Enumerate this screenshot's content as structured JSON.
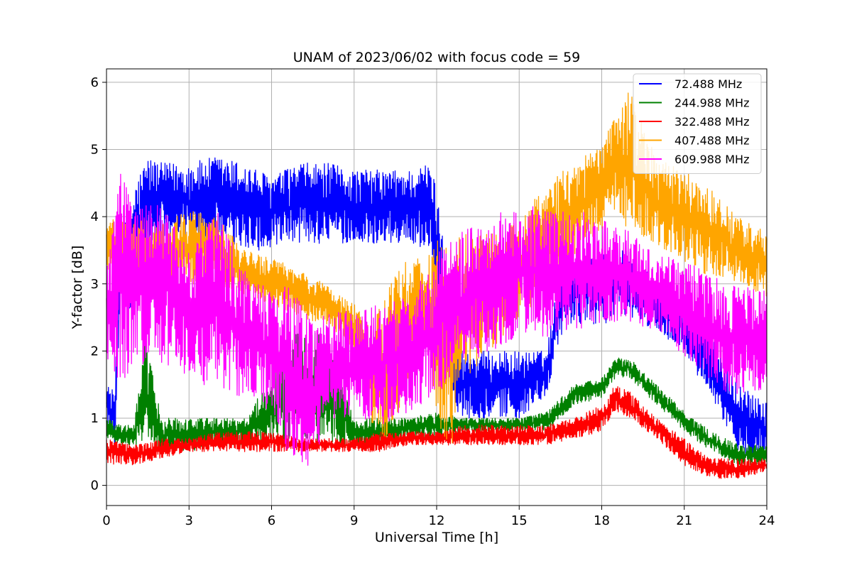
{
  "chart_data": {
    "type": "line",
    "title": "UNAM of 2023/06/02 with focus code = 59",
    "xlabel": "Universal Time [h]",
    "ylabel": "Y-factor [dB]",
    "xlim": [
      0,
      24
    ],
    "ylim": [
      -0.3,
      6.2
    ],
    "xticks": [
      0,
      3,
      6,
      9,
      12,
      15,
      18,
      21,
      24
    ],
    "yticks": [
      0,
      1,
      2,
      3,
      4,
      5,
      6
    ],
    "grid": true,
    "legend_position": "top-right",
    "series": [
      {
        "name": "  72.488 MHz",
        "color": "#0000ff",
        "x": [
          0,
          0.3,
          0.5,
          0.8,
          1.0,
          1.5,
          2,
          3,
          4,
          5,
          6,
          7,
          8,
          9,
          10,
          11,
          11.8,
          12.2,
          12.5,
          13,
          14,
          15,
          16,
          16.5,
          17,
          18,
          19,
          20,
          21,
          21.5,
          22,
          22.5,
          23,
          23.5,
          24
        ],
        "min": [
          0.9,
          0.6,
          2.5,
          2.5,
          2.5,
          3.5,
          3.7,
          3.6,
          3.6,
          3.5,
          3.5,
          3.6,
          3.6,
          3.6,
          3.6,
          3.6,
          3.5,
          2.0,
          1.2,
          1.0,
          1.0,
          1.0,
          1.3,
          2.2,
          2.4,
          2.4,
          2.5,
          2.3,
          2.0,
          1.6,
          1.3,
          0.9,
          0.4,
          0.4,
          0.4
        ],
        "max": [
          1.5,
          1.4,
          3.8,
          4.0,
          4.5,
          4.9,
          4.8,
          4.8,
          4.9,
          4.8,
          4.6,
          4.8,
          4.8,
          4.7,
          4.7,
          4.7,
          4.8,
          4.0,
          2.2,
          2.0,
          2.0,
          2.0,
          2.0,
          3.4,
          3.4,
          3.5,
          3.5,
          3.0,
          2.7,
          2.5,
          2.2,
          1.8,
          1.5,
          1.4,
          1.3
        ]
      },
      {
        "name": "244.988 MHz",
        "color": "#008000",
        "x": [
          0,
          0.5,
          1.0,
          1.4,
          2,
          3,
          4,
          5,
          6,
          7,
          8,
          9,
          10,
          11,
          12,
          13,
          14,
          15,
          16,
          16.5,
          17,
          18,
          18.5,
          19,
          20,
          21,
          22,
          23,
          24
        ],
        "min": [
          0.7,
          0.6,
          0.6,
          0.6,
          0.5,
          0.5,
          0.6,
          0.6,
          0.6,
          0.6,
          0.6,
          0.6,
          0.6,
          0.7,
          0.7,
          0.8,
          0.8,
          0.8,
          0.8,
          1.0,
          1.2,
          1.3,
          1.6,
          1.6,
          1.2,
          0.8,
          0.5,
          0.3,
          0.3
        ],
        "max": [
          1.0,
          0.9,
          0.9,
          2.2,
          1.0,
          1.0,
          1.0,
          1.0,
          1.6,
          2.4,
          2.2,
          1.0,
          1.0,
          1.0,
          1.1,
          1.0,
          1.0,
          1.0,
          1.1,
          1.3,
          1.5,
          1.6,
          1.9,
          1.9,
          1.5,
          1.1,
          0.8,
          0.6,
          0.6
        ]
      },
      {
        "name": "322.488 MHz",
        "color": "#ff0000",
        "x": [
          0,
          1,
          2,
          3,
          4,
          5,
          6,
          7,
          8,
          9,
          10,
          11,
          12,
          13,
          14,
          15,
          16,
          17,
          18,
          18.5,
          19,
          20,
          21,
          22,
          23,
          24
        ],
        "min": [
          0.3,
          0.3,
          0.4,
          0.5,
          0.5,
          0.5,
          0.5,
          0.5,
          0.5,
          0.5,
          0.5,
          0.6,
          0.6,
          0.6,
          0.6,
          0.6,
          0.6,
          0.7,
          0.8,
          1.1,
          1.0,
          0.7,
          0.3,
          0.1,
          0.1,
          0.2
        ],
        "max": [
          0.7,
          0.6,
          0.7,
          0.7,
          0.8,
          0.8,
          0.8,
          0.7,
          0.7,
          0.7,
          0.8,
          0.8,
          0.8,
          0.9,
          0.9,
          0.9,
          0.9,
          1.0,
          1.2,
          1.5,
          1.4,
          1.0,
          0.7,
          0.4,
          0.4,
          0.4
        ]
      },
      {
        "name": "407.488 MHz",
        "color": "#ffa500",
        "x": [
          0,
          1,
          2,
          3,
          4,
          5,
          6,
          7,
          8,
          9,
          9.5,
          10,
          10.5,
          11,
          11.5,
          12,
          12.5,
          13,
          14,
          15,
          16,
          17,
          18,
          18.5,
          19,
          20,
          21,
          22,
          23,
          24
        ],
        "min": [
          3.2,
          3.0,
          3.0,
          3.0,
          3.0,
          2.8,
          2.7,
          2.5,
          2.4,
          2.0,
          1.0,
          0.5,
          1.0,
          1.5,
          2.0,
          1.0,
          0.5,
          1.5,
          2.0,
          2.5,
          2.8,
          3.4,
          3.8,
          4.0,
          3.8,
          3.6,
          3.3,
          3.1,
          3.0,
          2.8
        ],
        "max": [
          4.0,
          4.0,
          3.9,
          4.1,
          4.0,
          3.5,
          3.4,
          3.2,
          3.0,
          2.7,
          2.4,
          2.8,
          3.3,
          3.5,
          3.3,
          3.7,
          3.5,
          3.8,
          3.8,
          4.0,
          4.5,
          4.8,
          5.1,
          5.5,
          5.9,
          4.9,
          4.7,
          4.4,
          4.0,
          3.8
        ]
      },
      {
        "name": "609.988 MHz",
        "color": "#ff00ff",
        "x": [
          0,
          0.5,
          1,
          2,
          3,
          4,
          5,
          6,
          6.5,
          7,
          7.5,
          8,
          9,
          10,
          11,
          12,
          12.5,
          13,
          14,
          15,
          16,
          17,
          18,
          19,
          20,
          21,
          22,
          23,
          24
        ],
        "min": [
          1.8,
          1.5,
          1.8,
          1.8,
          1.6,
          1.4,
          1.3,
          1.1,
          0.5,
          0.3,
          0.2,
          1.0,
          1.0,
          0.9,
          1.1,
          1.3,
          1.6,
          1.8,
          2.0,
          2.2,
          2.2,
          2.3,
          2.4,
          2.4,
          2.3,
          1.9,
          1.5,
          1.3,
          1.4
        ],
        "max": [
          3.2,
          4.7,
          4.2,
          4.2,
          3.5,
          4.2,
          3.2,
          2.9,
          3.0,
          2.8,
          2.5,
          2.6,
          2.6,
          2.7,
          2.8,
          3.4,
          3.8,
          3.8,
          4.0,
          4.2,
          4.1,
          4.1,
          4.0,
          3.8,
          3.4,
          3.4,
          3.1,
          3.0,
          2.9
        ]
      }
    ]
  }
}
